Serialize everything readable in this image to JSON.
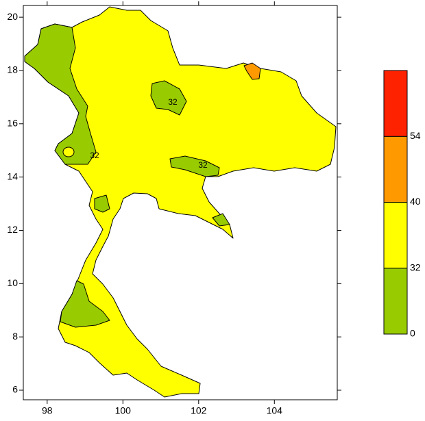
{
  "map": {
    "xlim": [
      97.37,
      105.66
    ],
    "ylim": [
      5.64,
      20.44
    ],
    "xticks": [
      98,
      100,
      102,
      104
    ],
    "yticks": [
      6,
      8,
      10,
      12,
      14,
      16,
      18,
      20
    ],
    "contour_labels": [
      "32",
      "32",
      "32"
    ],
    "colorbar": {
      "levels": [
        0,
        32,
        40,
        54
      ],
      "colors": [
        "#99cc00",
        "#ffff00",
        "#ff9900",
        "#ff2200"
      ]
    }
  }
}
